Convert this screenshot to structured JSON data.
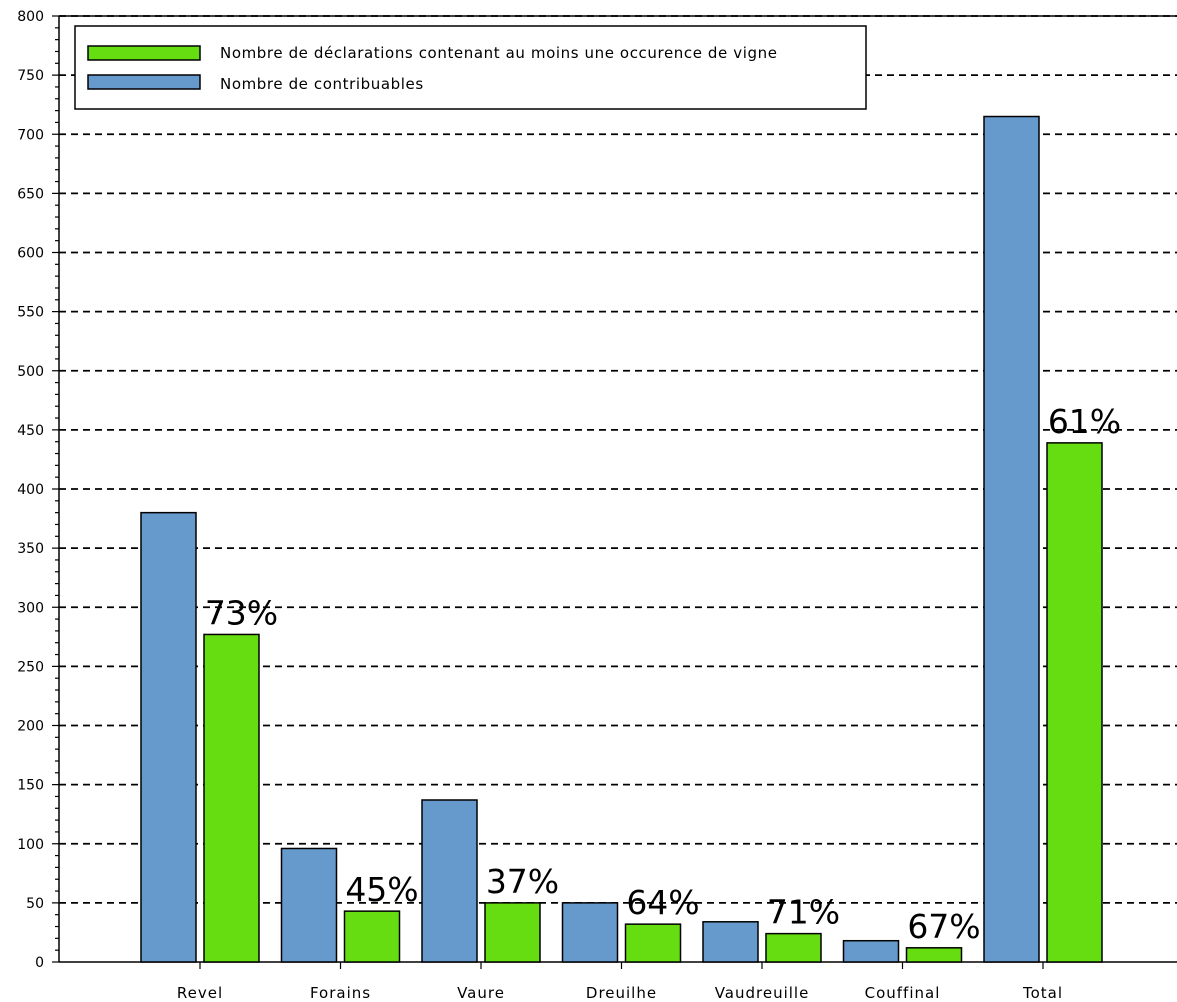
{
  "chart_data": {
    "type": "bar",
    "categories": [
      "Revel",
      "Forains",
      "Vaure",
      "Dreuilhe",
      "Vaudreuille",
      "Couffinal",
      "Total"
    ],
    "series": [
      {
        "name": "Nombre de contribuables",
        "color": "#6699cc",
        "values": [
          380,
          96,
          137,
          50,
          34,
          18,
          715
        ]
      },
      {
        "name": "Nombre de déclarations contenant au moins une occurence de vigne",
        "color": "#66dd11",
        "values": [
          277,
          43,
          50,
          32,
          24,
          12,
          439
        ]
      }
    ],
    "annotations": [
      "73%",
      "45%",
      "37%",
      "64%",
      "71%",
      "67%",
      "61%"
    ],
    "legend": {
      "entries": [
        {
          "label": "Nombre de déclarations contenant au moins une occurence de vigne",
          "color": "#66dd11"
        },
        {
          "label": "Nombre de contribuables",
          "color": "#6699cc"
        }
      ],
      "placement": "top-left"
    },
    "yticks": [
      0,
      50,
      100,
      150,
      200,
      250,
      300,
      350,
      400,
      450,
      500,
      550,
      600,
      650,
      700,
      750,
      800
    ],
    "ylim": [
      0,
      800
    ],
    "grid": true,
    "title": "",
    "xlabel": "",
    "ylabel": ""
  }
}
